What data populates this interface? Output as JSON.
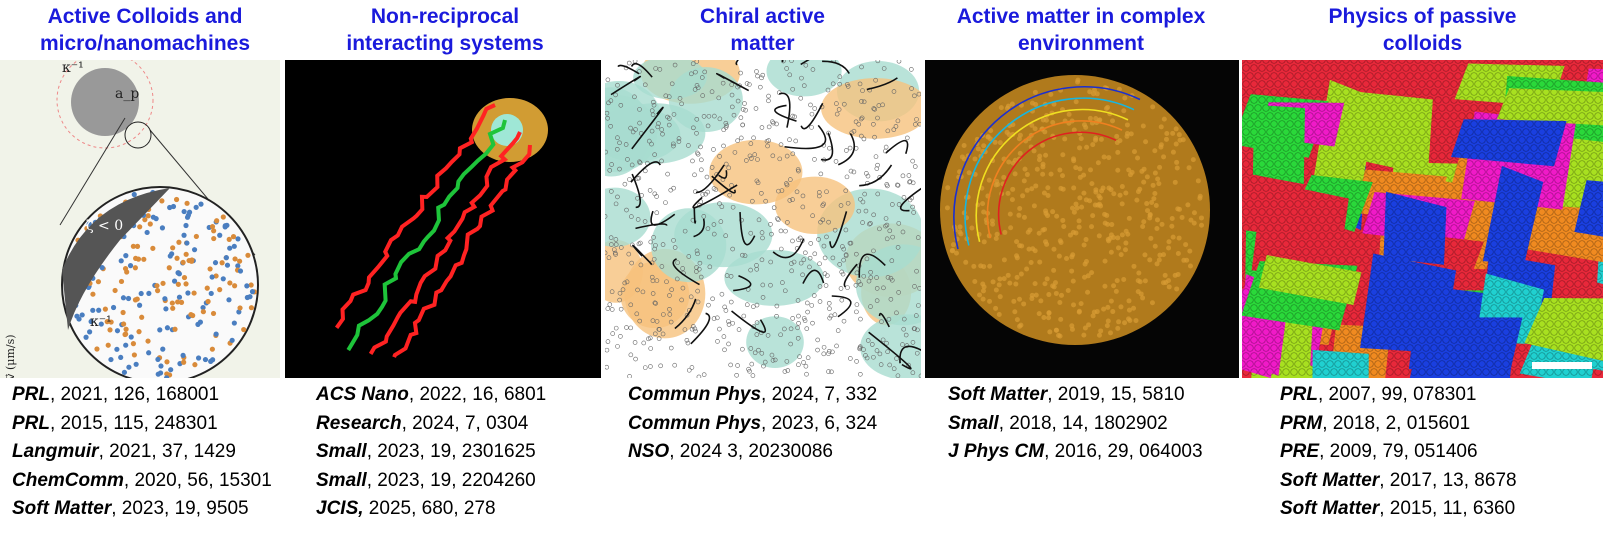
{
  "columns": [
    {
      "title": [
        "Active Colloids and",
        "micro/nanomachines"
      ],
      "labels": [
        "κ⁻¹",
        "a_p",
        "ζ < 0",
        "κ⁻¹",
        "v⃗ (μm/s)"
      ],
      "refs": [
        {
          "journal": "PRL",
          "details": ", 2021, 126, 168001"
        },
        {
          "journal": "PRL",
          "details": ", 2015, 115, 248301"
        },
        {
          "journal": "Langmuir",
          "details": ", 2021, 37, 1429"
        },
        {
          "journal": "ChemComm",
          "details": ", 2020, 56, 15301"
        },
        {
          "journal": "Soft Matter",
          "details": ", 2023, 19, 9505"
        }
      ]
    },
    {
      "title": [
        "Non-reciprocal",
        "interacting systems"
      ],
      "refs": [
        {
          "journal": "ACS Nano",
          "details": ", 2022, 16, 6801"
        },
        {
          "journal": "Research",
          "details": ", 2024, 7, 0304"
        },
        {
          "journal": "Small",
          "details": ", 2023, 19, 2301625"
        },
        {
          "journal": "Small",
          "details": ", 2023, 19, 2204260"
        },
        {
          "journal": "JCIS,",
          "details": " 2025, 680, 278"
        }
      ]
    },
    {
      "title": [
        "Chiral active",
        "matter"
      ],
      "refs": [
        {
          "journal": "Commun Phys",
          "details": ", 2024, 7, 332"
        },
        {
          "journal": "Commun Phys",
          "details": ", 2023, 6, 324"
        },
        {
          "journal": "NSO",
          "details": ", 2024 3, 20230086"
        }
      ]
    },
    {
      "title": [
        "Active matter in complex",
        "environment"
      ],
      "refs": [
        {
          "journal": "Soft Matter",
          "details": ", 2019, 15, 5810"
        },
        {
          "journal": "Small",
          "details": ", 2018, 14, 1802902"
        },
        {
          "journal": "J Phys CM",
          "details": ", 2016, 29, 064003"
        }
      ]
    },
    {
      "title": [
        "Physics of passive",
        "colloids"
      ],
      "refs": [
        {
          "journal": "PRL",
          "details": ", 2007, 99, 078301"
        },
        {
          "journal": "PRM",
          "details": ", 2018, 2, 015601"
        },
        {
          "journal": "PRE",
          "details": ", 2009, 79, 051406"
        },
        {
          "journal": "Soft Matter",
          "details": ", 2017, 13, 8678"
        },
        {
          "journal": "Soft Matter",
          "details": ", 2015, 11, 6360"
        }
      ]
    }
  ]
}
